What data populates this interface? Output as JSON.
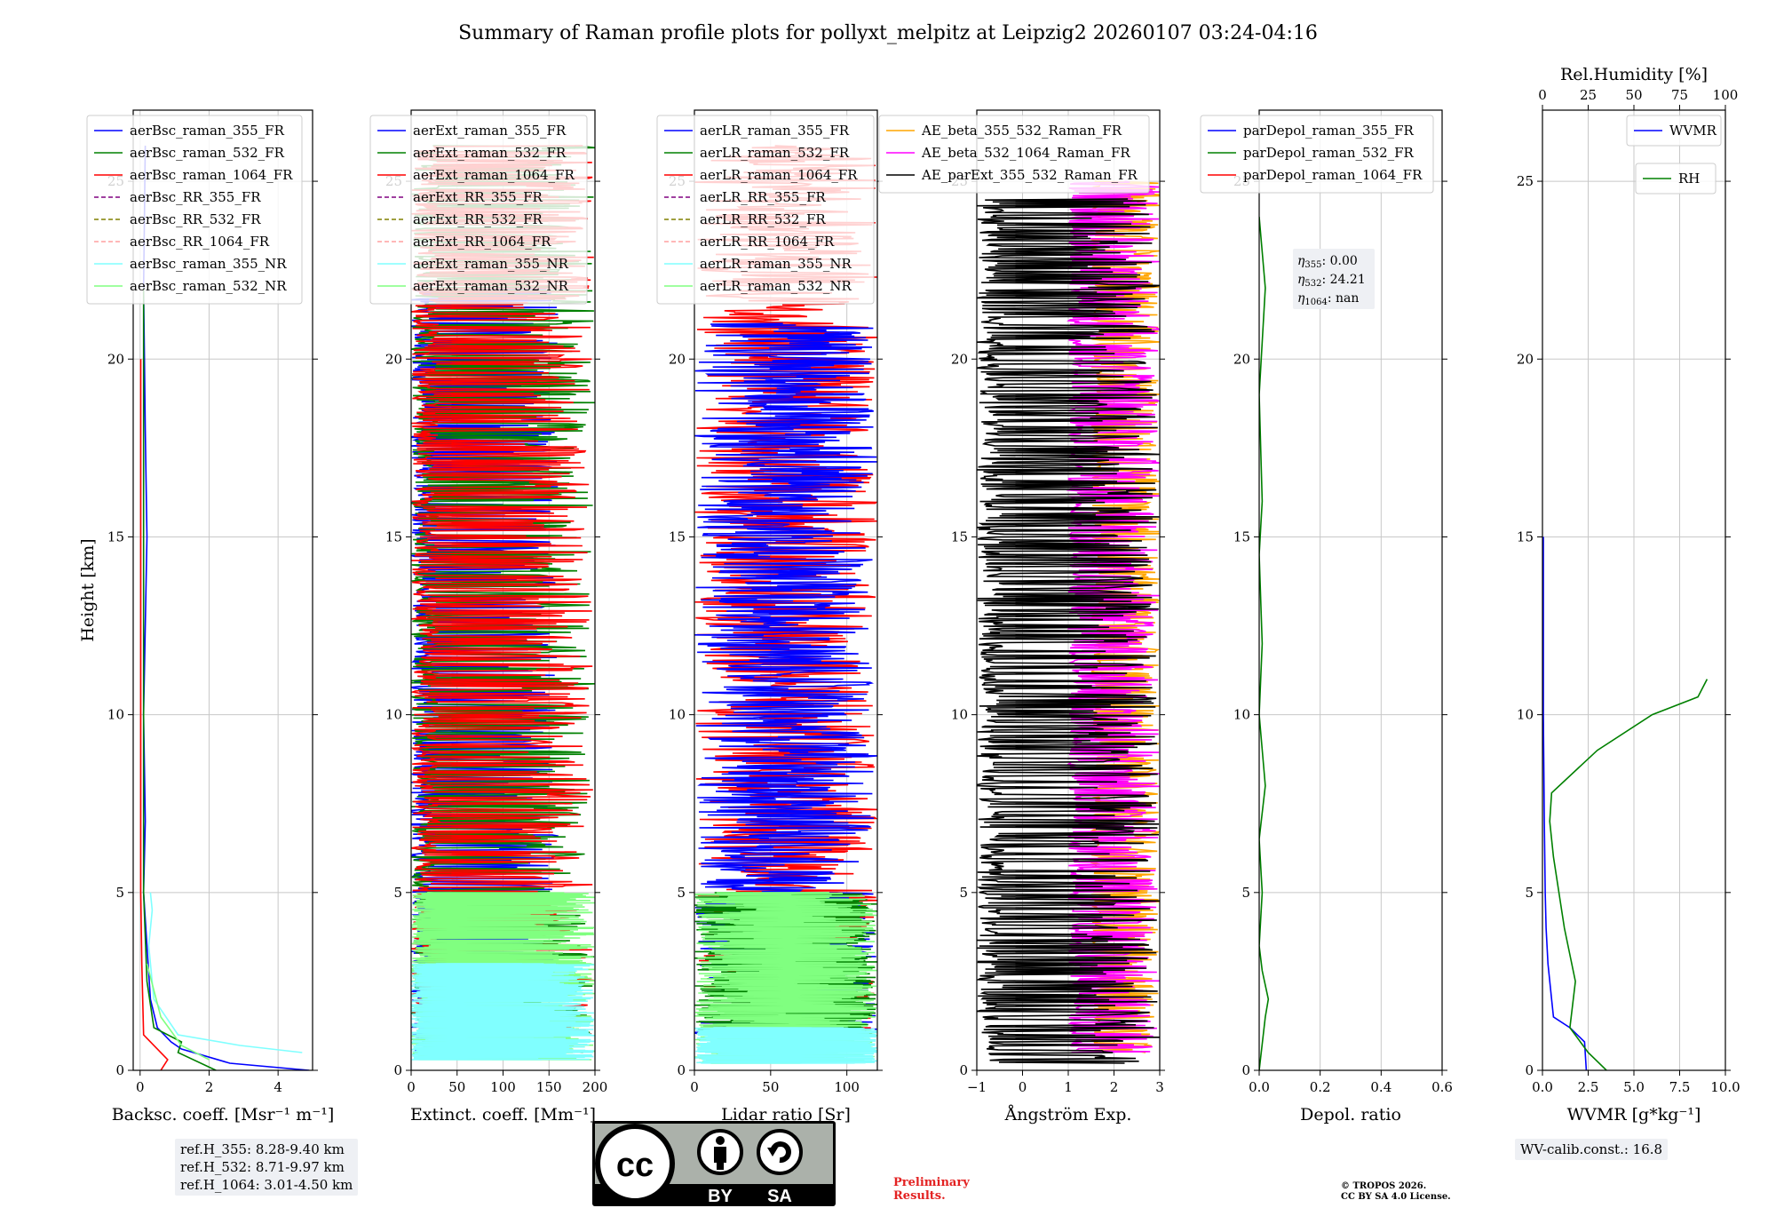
{
  "title": "Summary of Raman profile plots for pollyxt_melpitz at Leipzig2 20260107 03:24-04:16",
  "footer": {
    "ref_h": [
      "ref.H_355: 8.28-9.40 km",
      "ref.H_532: 8.71-9.97 km",
      "ref.H_1064: 3.01-4.50 km"
    ],
    "cc_badge": {
      "cc": "cc",
      "by": "BY",
      "sa": "SA"
    },
    "preliminary": [
      "Preliminary",
      "Results."
    ],
    "copyright": [
      "© TROPOS 2026.",
      "CC BY SA 4.0 License."
    ],
    "wv_calib": "WV-calib.const.: 16.8"
  },
  "colors": {
    "blue": "#0000ff",
    "green": "#008000",
    "red": "#ff0000",
    "purple": "#800080",
    "olive": "#808000",
    "pink": "#ffa0a0",
    "cyan": "#80ffff",
    "lightgreen": "#80ff80",
    "orange": "#ffa500",
    "magenta": "#ff00ff",
    "black": "#000000",
    "grid": "#c8c8c8"
  },
  "chart_data": [
    {
      "type": "line",
      "id": "backscatter",
      "xlabel": "Backsc. coeff. [Msr$^{-1}$ m$^{-1}$]",
      "xlabel_display": "Backsc. coeff. [Msr⁻¹ m⁻¹]",
      "ylabel": "Height [km]",
      "xlim": [
        -0.2,
        5
      ],
      "ylim": [
        0,
        27
      ],
      "xticks": [
        0,
        2,
        4
      ],
      "xtick_labels": [
        "0",
        "2",
        "4"
      ],
      "yticks": [
        0,
        5,
        10,
        15,
        20,
        25
      ],
      "ytick_labels": [
        "0",
        "5",
        "10",
        "15",
        "20",
        "25"
      ],
      "grid": true,
      "legend_position": "upper-right",
      "legend": [
        {
          "label": "aerBsc_raman_355_FR",
          "color": "blue",
          "style": "solid"
        },
        {
          "label": "aerBsc_raman_532_FR",
          "color": "green",
          "style": "solid"
        },
        {
          "label": "aerBsc_raman_1064_FR",
          "color": "red",
          "style": "solid"
        },
        {
          "label": "aerBsc_RR_355_FR",
          "color": "purple",
          "style": "dashed"
        },
        {
          "label": "aerBsc_RR_532_FR",
          "color": "olive",
          "style": "dashed"
        },
        {
          "label": "aerBsc_RR_1064_FR",
          "color": "pink",
          "style": "dashed"
        },
        {
          "label": "aerBsc_raman_355_NR",
          "color": "cyan",
          "style": "solid"
        },
        {
          "label": "aerBsc_raman_532_NR",
          "color": "lightgreen",
          "style": "solid"
        }
      ],
      "series": [
        {
          "name": "aerBsc_raman_355_FR",
          "color": "blue",
          "x": [
            4.9,
            2.6,
            1.2,
            0.9,
            0.5,
            0.3,
            0.2,
            0.1,
            0.15,
            0.1,
            0.2,
            0.15,
            0.1,
            0.15
          ],
          "y": [
            0.0,
            0.2,
            0.6,
            0.8,
            1.2,
            2.0,
            3.5,
            5.0,
            7.0,
            10.0,
            15.0,
            18.0,
            22.0,
            26.0
          ]
        },
        {
          "name": "aerBsc_raman_532_FR",
          "color": "green",
          "x": [
            2.2,
            1.1,
            1.2,
            0.4,
            0.2,
            0.1,
            0.1
          ],
          "y": [
            0.0,
            0.5,
            0.8,
            1.2,
            2.5,
            5.0,
            22.0
          ]
        },
        {
          "name": "aerBsc_raman_1064_FR",
          "color": "red",
          "x": [
            0.6,
            0.8,
            0.1,
            0.05,
            0.02,
            0.02
          ],
          "y": [
            0.0,
            0.3,
            1.0,
            3.0,
            5.0,
            20.0
          ]
        },
        {
          "name": "aerBsc_raman_355_NR",
          "color": "cyan",
          "x": [
            4.7,
            2.9,
            1.1,
            0.4,
            0.25,
            0.35,
            0.3
          ],
          "y": [
            0.5,
            0.7,
            1.0,
            2.0,
            3.5,
            4.5,
            5.0
          ]
        },
        {
          "name": "aerBsc_raman_532_NR",
          "color": "lightgreen",
          "x": [
            2.0,
            1.2,
            0.6,
            0.2
          ],
          "y": [
            0.3,
            0.7,
            1.5,
            3.0
          ]
        }
      ]
    },
    {
      "type": "line",
      "id": "extinction",
      "xlabel": "Extinct. coeff. [Mm$^{-1}$]",
      "xlabel_display": "Extinct. coeff. [Mm⁻¹]",
      "xlim": [
        0,
        200
      ],
      "ylim": [
        0,
        27
      ],
      "xticks": [
        0,
        50,
        100,
        150,
        200
      ],
      "xtick_labels": [
        "0",
        "50",
        "100",
        "150",
        "200"
      ],
      "yticks": [
        0,
        5,
        10,
        15,
        20,
        25
      ],
      "ytick_labels": [
        "0",
        "5",
        "10",
        "15",
        "20",
        "25"
      ],
      "grid": true,
      "legend_position": "upper-right",
      "legend": [
        {
          "label": "aerExt_raman_355_FR",
          "color": "blue",
          "style": "solid"
        },
        {
          "label": "aerExt_raman_532_FR",
          "color": "green",
          "style": "solid"
        },
        {
          "label": "aerExt_raman_1064_FR",
          "color": "red",
          "style": "solid"
        },
        {
          "label": "aerExt_RR_355_FR",
          "color": "purple",
          "style": "dashed"
        },
        {
          "label": "aerExt_RR_532_FR",
          "color": "olive",
          "style": "dashed"
        },
        {
          "label": "aerExt_RR_1064_FR",
          "color": "pink",
          "style": "dashed"
        },
        {
          "label": "aerExt_raman_355_NR",
          "color": "cyan",
          "style": "solid"
        },
        {
          "label": "aerExt_raman_532_NR",
          "color": "lightgreen",
          "style": "solid"
        }
      ],
      "series": [
        {
          "name": "aerExt_raman_355_FR",
          "color": "blue",
          "noise": {
            "ymin": 0.5,
            "ymax": 22,
            "xmax": 160,
            "seed": 11
          }
        },
        {
          "name": "aerExt_raman_532_FR",
          "color": "green",
          "noise": {
            "ymin": 0.5,
            "ymax": 26,
            "xmax": 200,
            "seed": 23
          }
        },
        {
          "name": "aerExt_raman_1064_FR",
          "color": "red",
          "noise": {
            "ymin": 1.0,
            "ymax": 26,
            "xmax": 200,
            "seed": 37
          }
        },
        {
          "name": "aerExt_raman_532_NR",
          "color": "lightgreen",
          "noise": {
            "ymin": 0.3,
            "ymax": 5.0,
            "xmax": 200,
            "seed": 41
          }
        },
        {
          "name": "aerExt_raman_355_NR",
          "color": "cyan",
          "noise": {
            "ymin": 0.3,
            "ymax": 3.0,
            "xmax": 200,
            "seed": 53
          }
        }
      ]
    },
    {
      "type": "line",
      "id": "lidar_ratio",
      "xlabel": "Lidar ratio [Sr]",
      "xlim": [
        0,
        120
      ],
      "ylim": [
        0,
        27
      ],
      "xticks": [
        0,
        50,
        100
      ],
      "xtick_labels": [
        "0",
        "50",
        "100"
      ],
      "yticks": [
        0,
        5,
        10,
        15,
        20,
        25
      ],
      "ytick_labels": [
        "0",
        "5",
        "10",
        "15",
        "20",
        "25"
      ],
      "grid": true,
      "legend_position": "upper-right",
      "legend": [
        {
          "label": "aerLR_raman_355_FR",
          "color": "blue",
          "style": "solid"
        },
        {
          "label": "aerLR_raman_532_FR",
          "color": "green",
          "style": "solid"
        },
        {
          "label": "aerLR_raman_1064_FR",
          "color": "red",
          "style": "solid"
        },
        {
          "label": "aerLR_RR_355_FR",
          "color": "purple",
          "style": "dashed"
        },
        {
          "label": "aerLR_RR_532_FR",
          "color": "olive",
          "style": "dashed"
        },
        {
          "label": "aerLR_RR_1064_FR",
          "color": "pink",
          "style": "dashed"
        },
        {
          "label": "aerLR_raman_355_NR",
          "color": "cyan",
          "style": "solid"
        },
        {
          "label": "aerLR_raman_532_NR",
          "color": "lightgreen",
          "style": "solid"
        }
      ],
      "series": [
        {
          "name": "aerLR_raman_1064_FR",
          "color": "red",
          "noise": {
            "ymin": 1.0,
            "ymax": 26,
            "xmax": 120,
            "full": true,
            "seed": 61
          }
        },
        {
          "name": "aerLR_raman_355_FR",
          "color": "blue",
          "noise": {
            "ymin": 1.0,
            "ymax": 21,
            "xmax": 120,
            "full": true,
            "seed": 71
          }
        },
        {
          "name": "aerLR_raman_532_FR",
          "color": "green",
          "noise": {
            "ymin": 1.0,
            "ymax": 5.0,
            "xmax": 120,
            "full": true,
            "seed": 79
          }
        },
        {
          "name": "aerLR_raman_532_NR",
          "color": "lightgreen",
          "noise": {
            "ymin": 0.2,
            "ymax": 5.0,
            "xmax": 120,
            "full": true,
            "seed": 83
          }
        },
        {
          "name": "aerLR_raman_355_NR",
          "color": "cyan",
          "noise": {
            "ymin": 0.2,
            "ymax": 1.2,
            "xmax": 120,
            "full": true,
            "seed": 89
          }
        }
      ]
    },
    {
      "type": "line",
      "id": "angstrom",
      "xlabel": "Ångström Exp.",
      "xlim": [
        -1,
        3
      ],
      "ylim": [
        0,
        27
      ],
      "xticks": [
        -1,
        0,
        1,
        2,
        3
      ],
      "xtick_labels": [
        "−1",
        "0",
        "1",
        "2",
        "3"
      ],
      "yticks": [
        0,
        5,
        10,
        15,
        20,
        25
      ],
      "ytick_labels": [
        "0",
        "5",
        "10",
        "15",
        "20",
        "25"
      ],
      "grid": true,
      "legend_position": "upper-right",
      "legend": [
        {
          "label": "AE_beta_355_532_Raman_FR",
          "color": "orange",
          "style": "solid"
        },
        {
          "label": "AE_beta_532_1064_Raman_FR",
          "color": "magenta",
          "style": "solid"
        },
        {
          "label": "AE_parExt_355_532_Raman_FR",
          "color": "black",
          "style": "solid"
        }
      ],
      "series": [
        {
          "name": "AE_beta_355_532_Raman_FR",
          "color": "orange",
          "noise": {
            "ymin": 0.5,
            "ymax": 25,
            "xmin": 1.5,
            "xmax": 3.0,
            "seed": 97
          }
        },
        {
          "name": "AE_beta_532_1064_Raman_FR",
          "color": "magenta",
          "noise": {
            "ymin": 0.5,
            "ymax": 25,
            "xmin": 1.0,
            "xmax": 3.0,
            "seed": 101
          }
        },
        {
          "name": "AE_parExt_355_532_Raman_FR",
          "color": "black",
          "noise": {
            "ymin": 0.2,
            "ymax": 24.5,
            "xmin": -1.0,
            "xmax": 3.0,
            "seed": 103
          }
        }
      ]
    },
    {
      "type": "line",
      "id": "depol",
      "xlabel": "Depol. ratio",
      "xlim": [
        0,
        0.6
      ],
      "ylim": [
        0,
        27
      ],
      "xticks": [
        0.0,
        0.2,
        0.4,
        0.6
      ],
      "xtick_labels": [
        "0.0",
        "0.2",
        "0.4",
        "0.6"
      ],
      "yticks": [
        0,
        5,
        10,
        15,
        20,
        25
      ],
      "ytick_labels": [
        "0",
        "5",
        "10",
        "15",
        "20",
        "25"
      ],
      "grid": true,
      "legend_position": "upper-right",
      "legend": [
        {
          "label": "parDepol_raman_355_FR",
          "color": "blue",
          "style": "solid"
        },
        {
          "label": "parDepol_raman_532_FR",
          "color": "green",
          "style": "solid"
        },
        {
          "label": "parDepol_raman_1064_FR",
          "color": "red",
          "style": "solid"
        }
      ],
      "annotation": {
        "eta_355": "0.00",
        "eta_532": "24.21",
        "eta_1064": "nan"
      },
      "series": [
        {
          "name": "parDepol_raman_532_FR",
          "color": "green",
          "x": [
            0.0,
            0.02,
            0.03,
            0.01,
            0.0,
            0.01,
            0.0,
            0.02,
            0.0,
            0.01,
            0.0,
            0.01,
            0.0,
            0.02,
            0.0
          ],
          "y": [
            0.0,
            1.5,
            2.0,
            2.8,
            3.5,
            5.0,
            6.5,
            8.0,
            10.0,
            12.0,
            14.5,
            16.0,
            19.0,
            22.0,
            24.0
          ]
        }
      ]
    },
    {
      "type": "line",
      "id": "wvmr",
      "xlabel": "WVMR [$g*kg^{-1}$]",
      "xlabel_display": "WVMR [g*kg⁻¹]",
      "x2label": "Rel.Humidity [%]",
      "xlim": [
        0,
        10
      ],
      "x2lim": [
        0,
        100
      ],
      "ylim": [
        0,
        27
      ],
      "xticks": [
        0.0,
        2.5,
        5.0,
        7.5,
        10.0
      ],
      "xtick_labels": [
        "0.0",
        "2.5",
        "5.0",
        "7.5",
        "10.0"
      ],
      "x2ticks": [
        0,
        25,
        50,
        75,
        100
      ],
      "x2tick_labels": [
        "0",
        "25",
        "50",
        "75",
        "100"
      ],
      "yticks": [
        0,
        5,
        10,
        15,
        20,
        25
      ],
      "ytick_labels": [
        "0",
        "5",
        "10",
        "15",
        "20",
        "25"
      ],
      "grid": true,
      "legend": [
        {
          "label": "WVMR",
          "color": "blue",
          "style": "solid"
        },
        {
          "label": "RH",
          "color": "green",
          "style": "solid"
        }
      ],
      "series": [
        {
          "name": "WVMR",
          "color": "blue",
          "x": [
            2.4,
            2.3,
            1.5,
            0.6,
            0.5,
            0.3,
            0.2,
            0.15,
            0.1,
            0.05,
            0.05,
            0.05
          ],
          "y": [
            0.0,
            0.8,
            1.2,
            1.5,
            2.0,
            3.0,
            4.0,
            5.0,
            7.0,
            10.0,
            12.0,
            15.0
          ]
        },
        {
          "name": "RH",
          "color": "green",
          "x2": [
            35,
            25,
            15,
            18,
            12,
            6,
            4,
            5,
            30,
            60,
            85,
            90
          ],
          "y": [
            0.0,
            0.5,
            1.2,
            2.5,
            4.0,
            6.0,
            7.0,
            7.8,
            9.0,
            10.0,
            10.5,
            11.0
          ]
        }
      ]
    }
  ]
}
